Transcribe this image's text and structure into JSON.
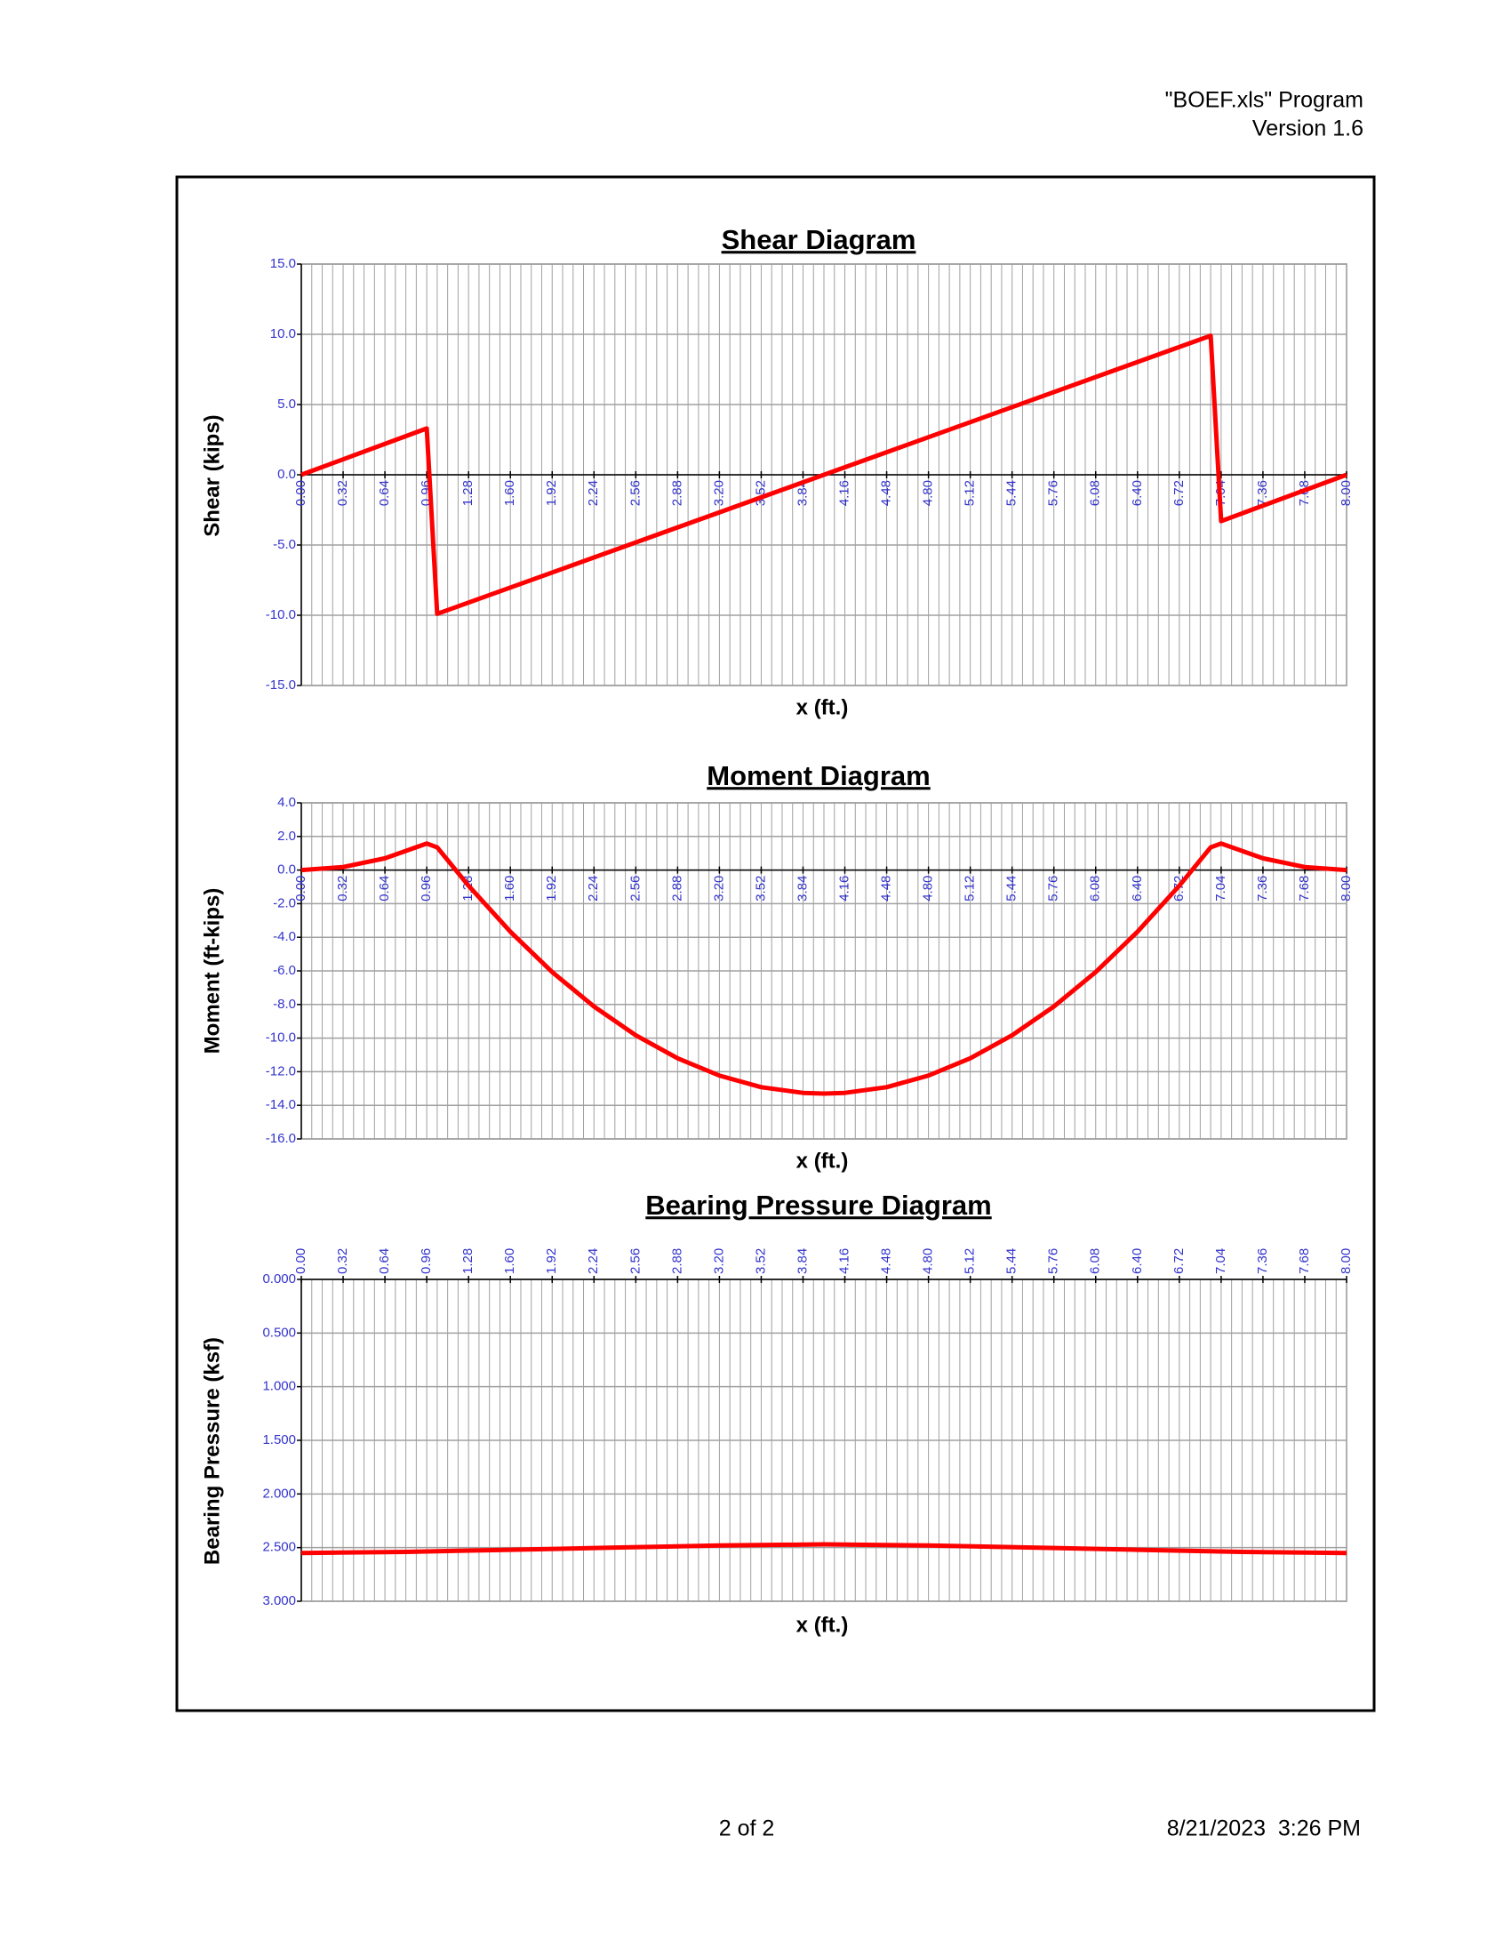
{
  "header": {
    "program": "\"BOEF.xls\" Program",
    "version": "Version 1.6"
  },
  "footer": {
    "page": "2 of 2",
    "date": "8/21/2023  3:26 PM"
  },
  "chart_data": [
    {
      "type": "line",
      "title": "Shear Diagram",
      "xlabel": "x (ft.)",
      "ylabel": "Shear (kips)",
      "x": [
        0,
        0.96,
        1.04,
        6.96,
        7.04,
        8.0
      ],
      "values": [
        0,
        3.3,
        -9.9,
        9.9,
        -3.3,
        0
      ],
      "color": "#ff0000",
      "grid": true,
      "x_minor_grid": 0.08,
      "xlim": [
        0,
        8
      ],
      "xticks": [
        {
          "value": 0,
          "label": "0.00"
        },
        {
          "value": 0.32,
          "label": "0.32"
        },
        {
          "value": 0.64,
          "label": "0.64"
        },
        {
          "value": 0.96,
          "label": "0.96"
        },
        {
          "value": 1.28,
          "label": "1.28"
        },
        {
          "value": 1.6,
          "label": "1.60"
        },
        {
          "value": 1.92,
          "label": "1.92"
        },
        {
          "value": 2.24,
          "label": "2.24"
        },
        {
          "value": 2.56,
          "label": "2.56"
        },
        {
          "value": 2.88,
          "label": "2.88"
        },
        {
          "value": 3.2,
          "label": "3.20"
        },
        {
          "value": 3.52,
          "label": "3.52"
        },
        {
          "value": 3.84,
          "label": "3.84"
        },
        {
          "value": 4.16,
          "label": "4.16"
        },
        {
          "value": 4.48,
          "label": "4.48"
        },
        {
          "value": 4.8,
          "label": "4.80"
        },
        {
          "value": 5.12,
          "label": "5.12"
        },
        {
          "value": 5.44,
          "label": "5.44"
        },
        {
          "value": 5.76,
          "label": "5.76"
        },
        {
          "value": 6.08,
          "label": "6.08"
        },
        {
          "value": 6.4,
          "label": "6.40"
        },
        {
          "value": 6.72,
          "label": "6.72"
        },
        {
          "value": 7.04,
          "label": "7.04"
        },
        {
          "value": 7.36,
          "label": "7.36"
        },
        {
          "value": 7.68,
          "label": "7.68"
        },
        {
          "value": 8,
          "label": "8.00"
        }
      ],
      "ylim": [
        -15,
        15
      ],
      "yticks": [
        {
          "value": 15,
          "label": "15.0"
        },
        {
          "value": 10,
          "label": "10.0"
        },
        {
          "value": 5,
          "label": "5.0"
        },
        {
          "value": 0,
          "label": "0.0"
        },
        {
          "value": -5,
          "label": "-5.0"
        },
        {
          "value": -10,
          "label": "-10.0"
        },
        {
          "value": -15,
          "label": "-15.0"
        }
      ]
    },
    {
      "type": "line",
      "title": "Moment Diagram",
      "xlabel": "x (ft.)",
      "ylabel": "Moment (ft-kips)",
      "x": [
        0,
        0.32,
        0.64,
        0.96,
        1.04,
        1.28,
        1.6,
        1.92,
        2.24,
        2.56,
        2.88,
        3.2,
        3.52,
        3.84,
        4.0,
        4.16,
        4.48,
        4.8,
        5.12,
        5.44,
        5.76,
        6.08,
        6.4,
        6.72,
        6.96,
        7.04,
        7.36,
        7.68,
        8.0
      ],
      "values": [
        0,
        0.18,
        0.7,
        1.58,
        1.35,
        -0.93,
        -3.67,
        -6.07,
        -8.12,
        -9.83,
        -11.2,
        -12.23,
        -12.92,
        -13.26,
        -13.3,
        -13.26,
        -12.92,
        -12.23,
        -11.2,
        -9.83,
        -8.12,
        -6.07,
        -3.67,
        -0.93,
        1.35,
        1.58,
        0.7,
        0.18,
        0
      ],
      "color": "#ff0000",
      "grid": true,
      "x_minor_grid": 0.08,
      "xlim": [
        0,
        8
      ],
      "xticks": [
        {
          "value": 0,
          "label": "0.00"
        },
        {
          "value": 0.32,
          "label": "0.32"
        },
        {
          "value": 0.64,
          "label": "0.64"
        },
        {
          "value": 0.96,
          "label": "0.96"
        },
        {
          "value": 1.28,
          "label": "1.28"
        },
        {
          "value": 1.6,
          "label": "1.60"
        },
        {
          "value": 1.92,
          "label": "1.92"
        },
        {
          "value": 2.24,
          "label": "2.24"
        },
        {
          "value": 2.56,
          "label": "2.56"
        },
        {
          "value": 2.88,
          "label": "2.88"
        },
        {
          "value": 3.2,
          "label": "3.20"
        },
        {
          "value": 3.52,
          "label": "3.52"
        },
        {
          "value": 3.84,
          "label": "3.84"
        },
        {
          "value": 4.16,
          "label": "4.16"
        },
        {
          "value": 4.48,
          "label": "4.48"
        },
        {
          "value": 4.8,
          "label": "4.80"
        },
        {
          "value": 5.12,
          "label": "5.12"
        },
        {
          "value": 5.44,
          "label": "5.44"
        },
        {
          "value": 5.76,
          "label": "5.76"
        },
        {
          "value": 6.08,
          "label": "6.08"
        },
        {
          "value": 6.4,
          "label": "6.40"
        },
        {
          "value": 6.72,
          "label": "6.72"
        },
        {
          "value": 7.04,
          "label": "7.04"
        },
        {
          "value": 7.36,
          "label": "7.36"
        },
        {
          "value": 7.68,
          "label": "7.68"
        },
        {
          "value": 8,
          "label": "8.00"
        }
      ],
      "ylim": [
        -16,
        4
      ],
      "yticks": [
        {
          "value": 4,
          "label": "4.0"
        },
        {
          "value": 2,
          "label": "2.0"
        },
        {
          "value": 0,
          "label": "0.0"
        },
        {
          "value": -2,
          "label": "-2.0"
        },
        {
          "value": -4,
          "label": "-4.0"
        },
        {
          "value": -6,
          "label": "-6.0"
        },
        {
          "value": -8,
          "label": "-8.0"
        },
        {
          "value": -10,
          "label": "-10.0"
        },
        {
          "value": -12,
          "label": "-12.0"
        },
        {
          "value": -14,
          "label": "-14.0"
        },
        {
          "value": -16,
          "label": "-16.0"
        }
      ]
    },
    {
      "type": "line",
      "title": "Bearing Pressure Diagram",
      "xlabel": "x (ft.)",
      "ylabel": "Bearing Pressure (ksf)",
      "x": [
        0,
        0.8,
        1.6,
        2.4,
        3.2,
        4.0,
        4.8,
        5.6,
        6.4,
        7.2,
        8.0
      ],
      "values": [
        2.55,
        2.54,
        2.52,
        2.5,
        2.48,
        2.47,
        2.48,
        2.5,
        2.52,
        2.54,
        2.55
      ],
      "color": "#ff0000",
      "grid": true,
      "x_minor_grid": 0.08,
      "xlim": [
        0,
        8
      ],
      "xticks": [
        {
          "value": 0,
          "label": "0.00"
        },
        {
          "value": 0.32,
          "label": "0.32"
        },
        {
          "value": 0.64,
          "label": "0.64"
        },
        {
          "value": 0.96,
          "label": "0.96"
        },
        {
          "value": 1.28,
          "label": "1.28"
        },
        {
          "value": 1.6,
          "label": "1.60"
        },
        {
          "value": 1.92,
          "label": "1.92"
        },
        {
          "value": 2.24,
          "label": "2.24"
        },
        {
          "value": 2.56,
          "label": "2.56"
        },
        {
          "value": 2.88,
          "label": "2.88"
        },
        {
          "value": 3.2,
          "label": "3.20"
        },
        {
          "value": 3.52,
          "label": "3.52"
        },
        {
          "value": 3.84,
          "label": "3.84"
        },
        {
          "value": 4.16,
          "label": "4.16"
        },
        {
          "value": 4.48,
          "label": "4.48"
        },
        {
          "value": 4.8,
          "label": "4.80"
        },
        {
          "value": 5.12,
          "label": "5.12"
        },
        {
          "value": 5.44,
          "label": "5.44"
        },
        {
          "value": 5.76,
          "label": "5.76"
        },
        {
          "value": 6.08,
          "label": "6.08"
        },
        {
          "value": 6.4,
          "label": "6.40"
        },
        {
          "value": 6.72,
          "label": "6.72"
        },
        {
          "value": 7.04,
          "label": "7.04"
        },
        {
          "value": 7.36,
          "label": "7.36"
        },
        {
          "value": 7.68,
          "label": "7.68"
        },
        {
          "value": 8,
          "label": "8.00"
        }
      ],
      "ylim": [
        3,
        0
      ],
      "yticks": [
        {
          "value": 0,
          "label": "0.000"
        },
        {
          "value": 0.5,
          "label": "0.500"
        },
        {
          "value": 1,
          "label": "1.000"
        },
        {
          "value": 1.5,
          "label": "1.500"
        },
        {
          "value": 2,
          "label": "2.000"
        },
        {
          "value": 2.5,
          "label": "2.500"
        },
        {
          "value": 3,
          "label": "3.000"
        }
      ]
    }
  ]
}
